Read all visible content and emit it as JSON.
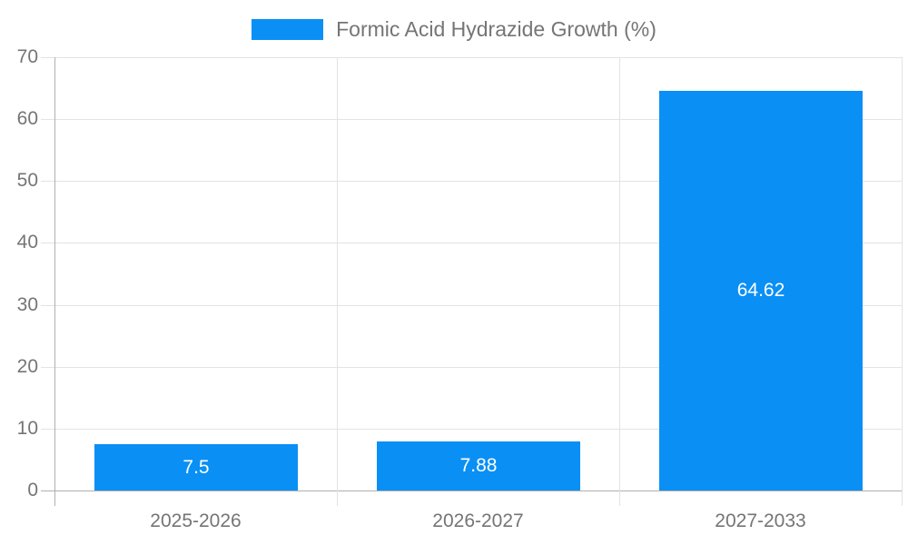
{
  "legend": {
    "label": "Formic Acid Hydrazide Growth (%)"
  },
  "colors": {
    "bar": "#0A8FF5",
    "axis_line": "#b0b0b0",
    "gridline": "#e3e3e3",
    "axis_text": "#757575",
    "value_text": "#ffffff",
    "background": "#ffffff"
  },
  "chart_data": {
    "type": "bar",
    "title": "Formic Acid Hydrazide Growth (%)",
    "categories": [
      "2025-2026",
      "2026-2027",
      "2027-2033"
    ],
    "values": [
      7.5,
      7.88,
      64.62
    ],
    "value_labels": [
      "7.5",
      "7.88",
      "64.62"
    ],
    "xlabel": "",
    "ylabel": "",
    "ylim": [
      0,
      70
    ],
    "ytick_labels": [
      "0",
      "10",
      "20",
      "30",
      "40",
      "50",
      "60",
      "70"
    ],
    "yticks": [
      0,
      10,
      20,
      30,
      40,
      50,
      60,
      70
    ],
    "grid": true,
    "legend_position": "top-center",
    "series": [
      {
        "name": "Formic Acid Hydrazide Growth (%)",
        "values": [
          7.5,
          7.88,
          64.62
        ]
      }
    ]
  }
}
